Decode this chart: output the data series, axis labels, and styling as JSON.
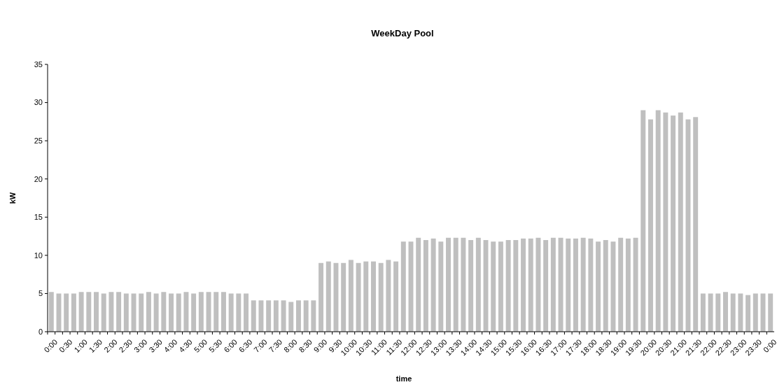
{
  "chart_data": {
    "type": "bar",
    "title": "WeekDay Pool",
    "xlabel": "time",
    "ylabel": "kW",
    "categories": [
      "0:00",
      null,
      "0:30",
      null,
      "1:00",
      null,
      "1:30",
      null,
      "2:00",
      null,
      "2:30",
      null,
      "3:00",
      null,
      "3:30",
      null,
      "4:00",
      null,
      "4:30",
      null,
      "5:00",
      null,
      "5:30",
      null,
      "6:00",
      null,
      "6:30",
      null,
      "7:00",
      null,
      "7:30",
      null,
      "8:00",
      null,
      "8:30",
      null,
      "9:00",
      null,
      "9:30",
      null,
      "10:00",
      null,
      "10:30",
      null,
      "11:00",
      null,
      "11:30",
      null,
      "12:00",
      null,
      "12:30",
      null,
      "13:00",
      null,
      "13:30",
      null,
      "14:00",
      null,
      "14:30",
      null,
      "15:00",
      null,
      "15:30",
      null,
      "16:00",
      null,
      "16:30",
      null,
      "17:00",
      null,
      "17:30",
      null,
      "18:00",
      null,
      "18:30",
      null,
      "19:00",
      null,
      "19:30",
      null,
      "20:00",
      null,
      "20:30",
      null,
      "21:00",
      null,
      "21:30",
      null,
      "22:00",
      null,
      "22:30",
      null,
      "23:00",
      null,
      "23:30",
      null,
      "0:00"
    ],
    "values": [
      5.2,
      5.0,
      5.0,
      5.0,
      5.2,
      5.2,
      5.2,
      5.0,
      5.2,
      5.2,
      5.0,
      5.0,
      5.0,
      5.2,
      5.0,
      5.2,
      5.0,
      5.0,
      5.2,
      5.0,
      5.2,
      5.2,
      5.2,
      5.2,
      5.0,
      5.0,
      5.0,
      4.1,
      4.1,
      4.1,
      4.1,
      4.1,
      3.9,
      4.1,
      4.1,
      4.1,
      9.0,
      9.2,
      9.0,
      9.0,
      9.4,
      9.0,
      9.2,
      9.2,
      9.0,
      9.4,
      9.2,
      11.8,
      11.8,
      12.3,
      12.0,
      12.2,
      11.8,
      12.3,
      12.3,
      12.3,
      12.0,
      12.3,
      12.0,
      11.8,
      11.8,
      12.0,
      12.0,
      12.2,
      12.2,
      12.3,
      12.0,
      12.3,
      12.3,
      12.2,
      12.2,
      12.3,
      12.2,
      11.8,
      12.0,
      11.8,
      12.3,
      12.2,
      12.3,
      29.0,
      27.8,
      29.0,
      28.7,
      28.3,
      28.7,
      27.8,
      28.1,
      5.0,
      5.0,
      5.0,
      5.2,
      5.0,
      5.0,
      4.8,
      5.0,
      5.0,
      5.0
    ],
    "color": "#bfbfbf",
    "ylim": [
      0,
      35
    ],
    "yticks": [
      0,
      5,
      10,
      15,
      20,
      25,
      30,
      35
    ]
  }
}
